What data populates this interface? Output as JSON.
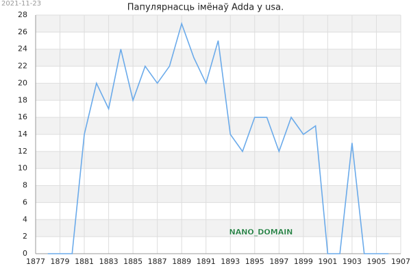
{
  "chart_data": {
    "type": "line",
    "title": "Папулярнасць імёнаў Adda у usa.",
    "date": "2021-11-23",
    "watermark": "NANO_DOMAIN",
    "x": [
      1878,
      1879,
      1880,
      1881,
      1882,
      1883,
      1884,
      1885,
      1886,
      1887,
      1888,
      1889,
      1890,
      1891,
      1892,
      1893,
      1894,
      1895,
      1896,
      1897,
      1898,
      1899,
      1900,
      1901,
      1902,
      1903,
      1904,
      1905,
      1906
    ],
    "series": [
      {
        "color": "#6aaaea",
        "values": [
          0,
          0,
          0,
          14,
          20,
          17,
          24,
          18,
          22,
          20,
          22,
          27,
          23,
          20,
          25,
          14,
          12,
          16,
          16,
          12,
          16,
          14,
          15,
          0,
          0,
          13,
          0,
          0,
          0
        ]
      }
    ],
    "xlim": [
      1877,
      1907
    ],
    "xticks": [
      1877,
      1879,
      1881,
      1883,
      1885,
      1887,
      1889,
      1891,
      1893,
      1895,
      1897,
      1899,
      1901,
      1903,
      1905,
      1907
    ],
    "ylim": [
      0,
      28
    ],
    "yticks": [
      0,
      2,
      4,
      6,
      8,
      10,
      12,
      14,
      16,
      18,
      20,
      22,
      24,
      26,
      28
    ],
    "grid": true
  }
}
